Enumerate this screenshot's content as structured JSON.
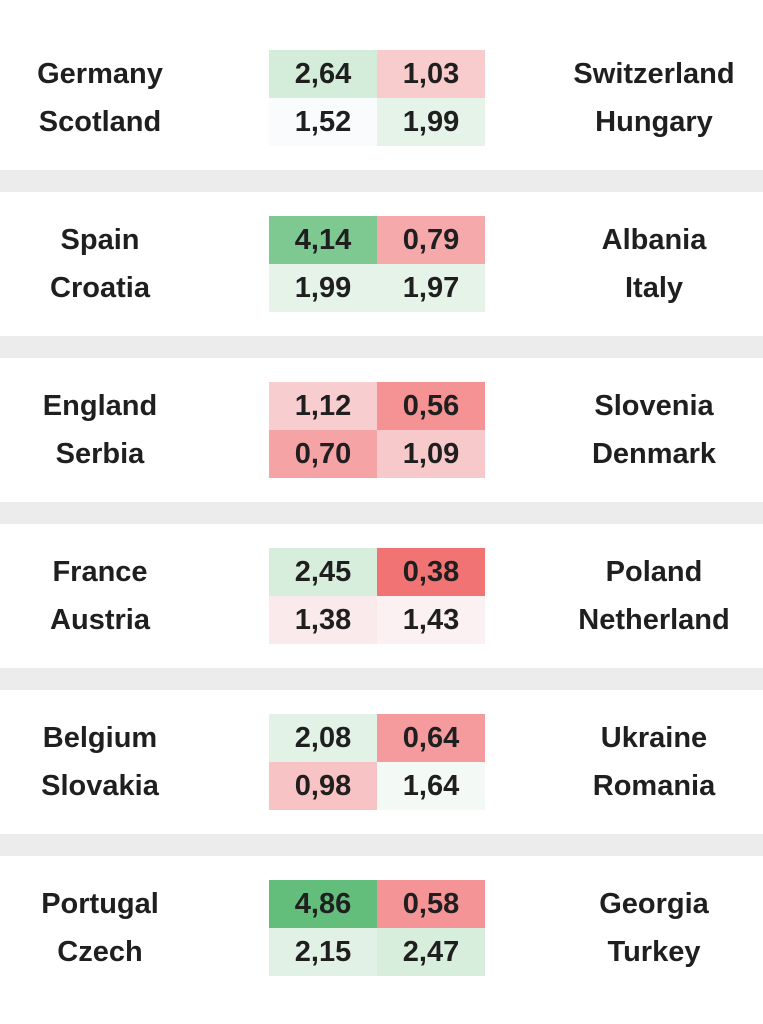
{
  "groups": [
    {
      "rows": [
        {
          "home": "Germany",
          "home_odds": "2,64",
          "away_odds": "1,03",
          "away": "Switzerland",
          "home_color": "#d4ecda",
          "away_color": "#f8cccc"
        },
        {
          "home": "Scotland",
          "home_odds": "1,52",
          "away_odds": "1,99",
          "away": "Hungary",
          "home_color": "#f9fbfd",
          "away_color": "#e6f3e9"
        }
      ]
    },
    {
      "rows": [
        {
          "home": "Spain",
          "home_odds": "4,14",
          "away_odds": "0,79",
          "away": "Albania",
          "home_color": "#7ec891",
          "away_color": "#f6a9ab"
        },
        {
          "home": "Croatia",
          "home_odds": "1,99",
          "away_odds": "1,97",
          "away": "Italy",
          "home_color": "#e6f3e9",
          "away_color": "#e6f3e9"
        }
      ]
    },
    {
      "rows": [
        {
          "home": "England",
          "home_odds": "1,12",
          "away_odds": "0,56",
          "away": "Slovenia",
          "home_color": "#f8cdcf",
          "away_color": "#f49294"
        },
        {
          "home": "Serbia",
          "home_odds": "0,70",
          "away_odds": "1,09",
          "away": "Denmark",
          "home_color": "#f5a3a5",
          "away_color": "#f8c9cb"
        }
      ]
    },
    {
      "rows": [
        {
          "home": "France",
          "home_odds": "2,45",
          "away_odds": "0,38",
          "away": "Poland",
          "home_color": "#d8eedd",
          "away_color": "#f27374"
        },
        {
          "home": "Austria",
          "home_odds": "1,38",
          "away_odds": "1,43",
          "away": "Netherland",
          "home_color": "#fbeaec",
          "away_color": "#fbf0f2"
        }
      ]
    },
    {
      "rows": [
        {
          "home": "Belgium",
          "home_odds": "2,08",
          "away_odds": "0,64",
          "away": "Ukraine",
          "home_color": "#e3f2e6",
          "away_color": "#f59b9d"
        },
        {
          "home": "Slovakia",
          "home_odds": "0,98",
          "away_odds": "1,64",
          "away": "Romania",
          "home_color": "#f8c3c5",
          "away_color": "#f3f9f5"
        }
      ]
    },
    {
      "rows": [
        {
          "home": "Portugal",
          "home_odds": "4,86",
          "away_odds": "0,58",
          "away": "Georgia",
          "home_color": "#63be7b",
          "away_color": "#f49496"
        },
        {
          "home": "Czech",
          "home_odds": "2,15",
          "away_odds": "2,47",
          "away": "Turkey",
          "home_color": "#e2f1e5",
          "away_color": "#d8eedd"
        }
      ]
    }
  ]
}
